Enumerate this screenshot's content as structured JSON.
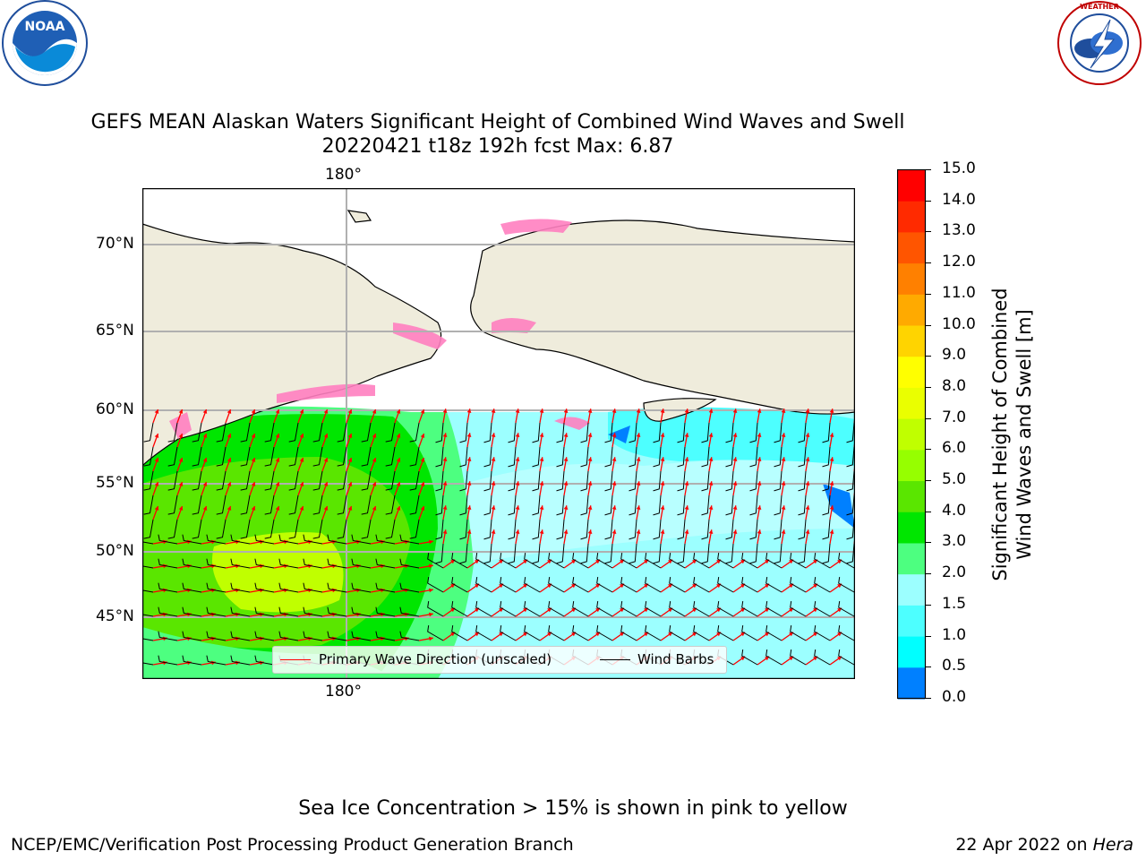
{
  "title_line1": "GEFS MEAN Alaskan Waters Significant Height of Combined Wind Waves and Swell",
  "title_line2": "20220421 t18z 192h fcst   Max: 6.87",
  "lon_label_top": "180°",
  "lon_label_bottom": "180°",
  "lat_labels": [
    "70°N",
    "65°N",
    "60°N",
    "55°N",
    "50°N",
    "45°N"
  ],
  "legend": {
    "wave_label": "Primary Wave Direction (unscaled)",
    "wind_label": "Wind Barbs",
    "wave_color": "#ff0000",
    "wind_color": "#000000"
  },
  "colorbar": {
    "label_line1": "Significant Height of Combined",
    "label_line2": "Wind Waves and Swell [m]",
    "ticks": [
      "15.0",
      "14.0",
      "13.0",
      "12.0",
      "11.0",
      "10.0",
      "9.0",
      "8.0",
      "7.0",
      "6.0",
      "5.0",
      "4.0",
      "3.0",
      "2.0",
      "1.5",
      "1.0",
      "0.5",
      "0.0"
    ],
    "colors": [
      "#ff0000",
      "#ff2a00",
      "#ff5500",
      "#ff8000",
      "#ffaa00",
      "#ffd400",
      "#ffff00",
      "#eaff00",
      "#c0ff00",
      "#96ff00",
      "#5ae600",
      "#00e600",
      "#4dff80",
      "#9cffff",
      "#4dffff",
      "#00ffff",
      "#0080ff",
      "#0000ff"
    ]
  },
  "ice_note": "Sea Ice Concentration > 15% is shown in pink to yellow",
  "footer_left": "NCEP/EMC/Verification Post Processing Product Generation Branch",
  "footer_date": "22 Apr 2022 on ",
  "footer_host": "Hera",
  "logo_noaa_text": "NOAA",
  "logo_noaa_ring": "NATIONAL OCEANIC AND ATMOSPHERIC ADMINISTRATION · U.S. DEPARTMENT OF COMMERCE",
  "logo_nws_text": "NATIONAL WEATHER SERVICE",
  "colors": {
    "land": "#efecdc",
    "ocean_none": "#ffffff",
    "ice": "#ff80c0"
  }
}
